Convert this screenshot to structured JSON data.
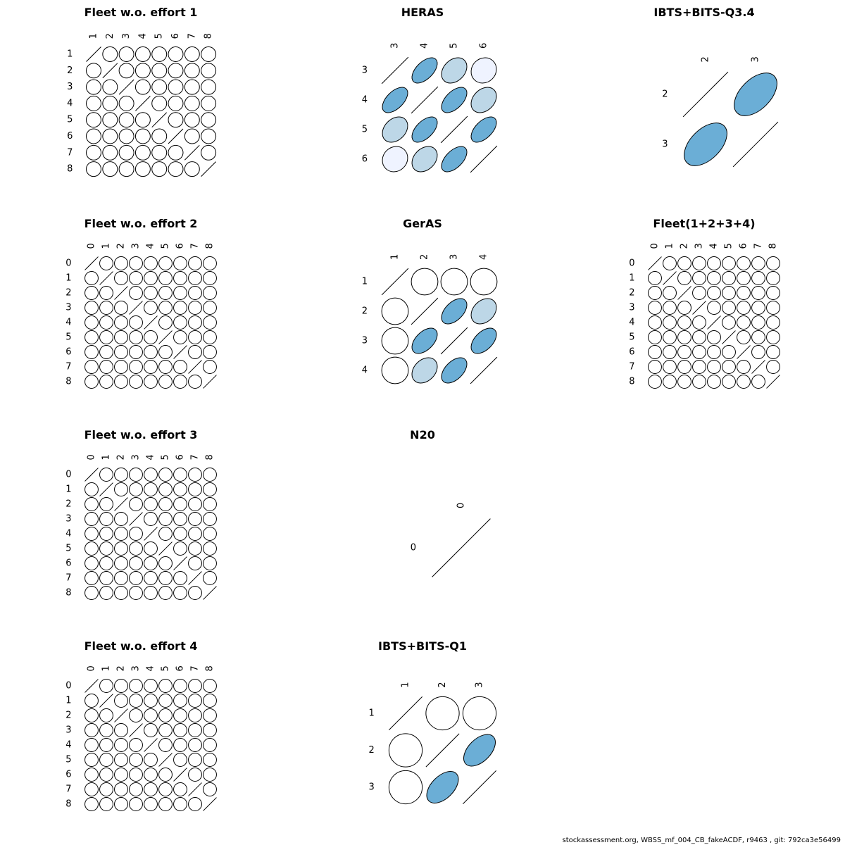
{
  "footer_text": "stockassessment.org, WBSS_mf_004_CB_fakeACDF, r9463 , git: 792ca3e56499",
  "colors": {
    "strong": "#6baed6",
    "medium": "#bdd7e7",
    "weak": "#eff3ff",
    "none": "#ffffff",
    "stroke": "#000000"
  },
  "chart_data": [
    {
      "type": "correlation-matrix",
      "title": "Fleet w.o. effort 1",
      "labels": [
        "1",
        "2",
        "3",
        "4",
        "5",
        "6",
        "7",
        "8"
      ],
      "correlations": [
        [
          1,
          0,
          0,
          0,
          0,
          0,
          0,
          0
        ],
        [
          0,
          1,
          0,
          0,
          0,
          0,
          0,
          0
        ],
        [
          0,
          0,
          1,
          0,
          0,
          0,
          0,
          0
        ],
        [
          0,
          0,
          0,
          1,
          0,
          0,
          0,
          0
        ],
        [
          0,
          0,
          0,
          0,
          1,
          0,
          0,
          0
        ],
        [
          0,
          0,
          0,
          0,
          0,
          1,
          0,
          0
        ],
        [
          0,
          0,
          0,
          0,
          0,
          0,
          1,
          0
        ],
        [
          0,
          0,
          0,
          0,
          0,
          0,
          0,
          1
        ]
      ]
    },
    {
      "type": "correlation-matrix",
      "title": "HERAS",
      "labels": [
        "3",
        "4",
        "5",
        "6"
      ],
      "correlations": [
        [
          1,
          0.55,
          0.3,
          0.1
        ],
        [
          0.55,
          1,
          0.55,
          0.3
        ],
        [
          0.3,
          0.55,
          1,
          0.55
        ],
        [
          0.1,
          0.3,
          0.55,
          1
        ]
      ]
    },
    {
      "type": "correlation-matrix",
      "title": "IBTS+BITS-Q3.4",
      "labels": [
        "2",
        "3"
      ],
      "correlations": [
        [
          1,
          0.5
        ],
        [
          0.5,
          1
        ]
      ]
    },
    {
      "type": "correlation-matrix",
      "title": "Fleet w.o. effort 2",
      "labels": [
        "0",
        "1",
        "2",
        "3",
        "4",
        "5",
        "6",
        "7",
        "8"
      ],
      "correlations": [
        [
          1,
          0,
          0,
          0,
          0,
          0,
          0,
          0,
          0
        ],
        [
          0,
          1,
          0,
          0,
          0,
          0,
          0,
          0,
          0
        ],
        [
          0,
          0,
          1,
          0,
          0,
          0,
          0,
          0,
          0
        ],
        [
          0,
          0,
          0,
          1,
          0,
          0,
          0,
          0,
          0
        ],
        [
          0,
          0,
          0,
          0,
          1,
          0,
          0,
          0,
          0
        ],
        [
          0,
          0,
          0,
          0,
          0,
          1,
          0,
          0,
          0
        ],
        [
          0,
          0,
          0,
          0,
          0,
          0,
          1,
          0,
          0
        ],
        [
          0,
          0,
          0,
          0,
          0,
          0,
          0,
          1,
          0
        ],
        [
          0,
          0,
          0,
          0,
          0,
          0,
          0,
          0,
          1
        ]
      ]
    },
    {
      "type": "correlation-matrix",
      "title": "GerAS",
      "labels": [
        "1",
        "2",
        "3",
        "4"
      ],
      "correlations": [
        [
          1,
          0,
          0,
          0
        ],
        [
          0,
          1,
          0.5,
          0.3
        ],
        [
          0,
          0.5,
          1,
          0.5
        ],
        [
          0,
          0.3,
          0.5,
          1
        ]
      ]
    },
    {
      "type": "correlation-matrix",
      "title": "Fleet(1+2+3+4)",
      "labels": [
        "0",
        "1",
        "2",
        "3",
        "4",
        "5",
        "6",
        "7",
        "8"
      ],
      "correlations": [
        [
          1,
          0,
          0,
          0,
          0,
          0,
          0,
          0,
          0
        ],
        [
          0,
          1,
          0,
          0,
          0,
          0,
          0,
          0,
          0
        ],
        [
          0,
          0,
          1,
          0,
          0,
          0,
          0,
          0,
          0
        ],
        [
          0,
          0,
          0,
          1,
          0,
          0,
          0,
          0,
          0
        ],
        [
          0,
          0,
          0,
          0,
          1,
          0,
          0,
          0,
          0
        ],
        [
          0,
          0,
          0,
          0,
          0,
          1,
          0,
          0,
          0
        ],
        [
          0,
          0,
          0,
          0,
          0,
          0,
          1,
          0,
          0
        ],
        [
          0,
          0,
          0,
          0,
          0,
          0,
          0,
          1,
          0
        ],
        [
          0,
          0,
          0,
          0,
          0,
          0,
          0,
          0,
          1
        ]
      ]
    },
    {
      "type": "correlation-matrix",
      "title": "Fleet w.o. effort 3",
      "labels": [
        "0",
        "1",
        "2",
        "3",
        "4",
        "5",
        "6",
        "7",
        "8"
      ],
      "correlations": [
        [
          1,
          0,
          0,
          0,
          0,
          0,
          0,
          0,
          0
        ],
        [
          0,
          1,
          0,
          0,
          0,
          0,
          0,
          0,
          0
        ],
        [
          0,
          0,
          1,
          0,
          0,
          0,
          0,
          0,
          0
        ],
        [
          0,
          0,
          0,
          1,
          0,
          0,
          0,
          0,
          0
        ],
        [
          0,
          0,
          0,
          0,
          1,
          0,
          0,
          0,
          0
        ],
        [
          0,
          0,
          0,
          0,
          0,
          1,
          0,
          0,
          0
        ],
        [
          0,
          0,
          0,
          0,
          0,
          0,
          1,
          0,
          0
        ],
        [
          0,
          0,
          0,
          0,
          0,
          0,
          0,
          1,
          0
        ],
        [
          0,
          0,
          0,
          0,
          0,
          0,
          0,
          0,
          1
        ]
      ]
    },
    {
      "type": "correlation-matrix",
      "title": "N20",
      "labels": [
        "0"
      ],
      "correlations": [
        [
          1
        ]
      ]
    },
    {
      "type": "correlation-matrix",
      "title": "Fleet w.o. effort 4",
      "labels": [
        "0",
        "1",
        "2",
        "3",
        "4",
        "5",
        "6",
        "7",
        "8"
      ],
      "correlations": [
        [
          1,
          0,
          0,
          0,
          0,
          0,
          0,
          0,
          0
        ],
        [
          0,
          1,
          0,
          0,
          0,
          0,
          0,
          0,
          0
        ],
        [
          0,
          0,
          1,
          0,
          0,
          0,
          0,
          0,
          0
        ],
        [
          0,
          0,
          0,
          1,
          0,
          0,
          0,
          0,
          0
        ],
        [
          0,
          0,
          0,
          0,
          1,
          0,
          0,
          0,
          0
        ],
        [
          0,
          0,
          0,
          0,
          0,
          1,
          0,
          0,
          0
        ],
        [
          0,
          0,
          0,
          0,
          0,
          0,
          1,
          0,
          0
        ],
        [
          0,
          0,
          0,
          0,
          0,
          0,
          0,
          1,
          0
        ],
        [
          0,
          0,
          0,
          0,
          0,
          0,
          0,
          0,
          1
        ]
      ]
    },
    {
      "type": "correlation-matrix",
      "title": "IBTS+BITS-Q1",
      "labels": [
        "1",
        "2",
        "3"
      ],
      "correlations": [
        [
          1,
          0,
          0
        ],
        [
          0,
          1,
          0.5
        ],
        [
          0,
          0.5,
          1
        ]
      ]
    }
  ]
}
